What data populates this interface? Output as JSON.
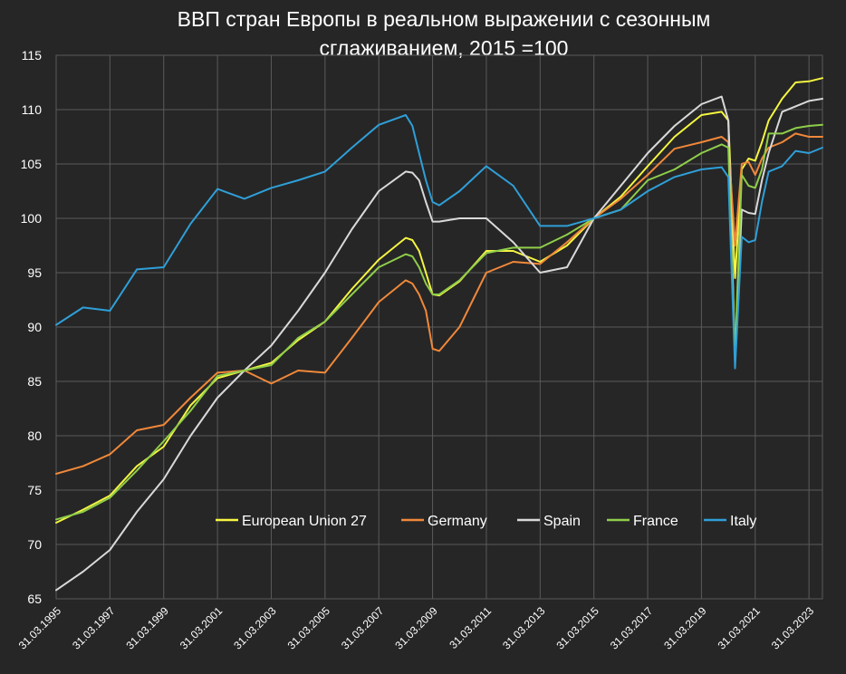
{
  "chart_data": {
    "type": "line",
    "title_line1": "ВВП стран Европы в реальном выражении с сезонным",
    "title_line2": "сглаживанием, 2015 =100",
    "xlabel": "",
    "ylabel": "",
    "ylim": [
      65,
      115
    ],
    "yticks": [
      65,
      70,
      75,
      80,
      85,
      90,
      95,
      100,
      105,
      110,
      115
    ],
    "xlim": [
      1995.0,
      2023.5
    ],
    "xticks": [
      {
        "label": "31.03.1995",
        "x": 1995.0
      },
      {
        "label": "31.03.1997",
        "x": 1997.0
      },
      {
        "label": "31.03.1999",
        "x": 1999.0
      },
      {
        "label": "31.03.2001",
        "x": 2001.0
      },
      {
        "label": "31.03.2003",
        "x": 2003.0
      },
      {
        "label": "31.03.2005",
        "x": 2005.0
      },
      {
        "label": "31.03.2007",
        "x": 2007.0
      },
      {
        "label": "31.03.2009",
        "x": 2009.0
      },
      {
        "label": "31.03.2011",
        "x": 2011.0
      },
      {
        "label": "31.03.2013",
        "x": 2013.0
      },
      {
        "label": "31.03.2015",
        "x": 2015.0
      },
      {
        "label": "31.03.2017",
        "x": 2017.0
      },
      {
        "label": "31.03.2019",
        "x": 2019.0
      },
      {
        "label": "31.03.2021",
        "x": 2021.0
      },
      {
        "label": "31.03.2023",
        "x": 2023.0
      }
    ],
    "grid": true,
    "legend_position": "bottom-center inside plot",
    "series": [
      {
        "name": "European Union 27",
        "color": "#f5f542",
        "x": [
          1995,
          1996,
          1997,
          1998,
          1999,
          2000,
          2001,
          2002,
          2003,
          2004,
          2005,
          2006,
          2007,
          2008,
          2008.25,
          2008.5,
          2008.75,
          2009,
          2009.25,
          2010,
          2011,
          2012,
          2013,
          2014,
          2015,
          2016,
          2017,
          2018,
          2019,
          2019.75,
          2020,
          2020.25,
          2020.5,
          2020.75,
          2021,
          2021.25,
          2021.5,
          2022,
          2022.5,
          2023,
          2023.5
        ],
        "y": [
          72.0,
          73.2,
          74.5,
          77.2,
          79.0,
          82.8,
          85.3,
          86.0,
          86.7,
          88.8,
          90.5,
          93.5,
          96.2,
          98.2,
          98.0,
          97.0,
          95.0,
          93.0,
          92.9,
          94.2,
          97.0,
          97.0,
          96.0,
          97.5,
          100.0,
          102.0,
          104.8,
          107.5,
          109.5,
          109.8,
          109.0,
          94.5,
          104.5,
          105.5,
          105.3,
          107.0,
          109.0,
          111.0,
          112.5,
          112.6,
          112.9
        ]
      },
      {
        "name": "Germany",
        "color": "#f0883a",
        "x": [
          1995,
          1996,
          1997,
          1998,
          1999,
          2000,
          2001,
          2002,
          2003,
          2004,
          2005,
          2006,
          2007,
          2008,
          2008.25,
          2008.5,
          2008.75,
          2009,
          2009.25,
          2010,
          2011,
          2012,
          2013,
          2014,
          2015,
          2016,
          2017,
          2018,
          2019,
          2019.75,
          2020,
          2020.25,
          2020.5,
          2020.75,
          2021,
          2021.25,
          2021.5,
          2022,
          2022.5,
          2023,
          2023.5
        ],
        "y": [
          76.5,
          77.2,
          78.3,
          80.5,
          81.0,
          83.5,
          85.8,
          86.0,
          84.8,
          86.0,
          85.8,
          89.0,
          92.3,
          94.3,
          94.0,
          93.0,
          91.5,
          88.0,
          87.8,
          90.0,
          95.0,
          96.0,
          95.8,
          97.8,
          100.0,
          101.8,
          104.0,
          106.4,
          107.0,
          107.5,
          107.0,
          97.5,
          105.0,
          105.2,
          104.0,
          105.5,
          106.5,
          107.0,
          107.8,
          107.5,
          107.5
        ]
      },
      {
        "name": "Spain",
        "color": "#d9d9d9",
        "x": [
          1995,
          1996,
          1997,
          1998,
          1999,
          2000,
          2001,
          2002,
          2003,
          2004,
          2005,
          2006,
          2007,
          2008,
          2008.25,
          2008.5,
          2008.75,
          2009,
          2009.25,
          2010,
          2011,
          2012,
          2013,
          2014,
          2015,
          2016,
          2017,
          2018,
          2019,
          2019.75,
          2020,
          2020.25,
          2020.5,
          2020.75,
          2021,
          2021.25,
          2021.5,
          2022,
          2022.5,
          2023,
          2023.5
        ],
        "y": [
          65.8,
          67.5,
          69.5,
          73.0,
          76.0,
          80.0,
          83.5,
          86.0,
          88.3,
          91.5,
          95.0,
          99.0,
          102.5,
          104.3,
          104.2,
          103.5,
          101.5,
          99.7,
          99.7,
          100.0,
          100.0,
          97.8,
          95.0,
          95.5,
          100.0,
          103.0,
          106.0,
          108.5,
          110.5,
          111.2,
          109.0,
          87.0,
          100.8,
          100.5,
          100.4,
          103.5,
          106.0,
          109.8,
          110.3,
          110.8,
          111.0
        ]
      },
      {
        "name": "France",
        "color": "#8fce4a",
        "x": [
          1995,
          1996,
          1997,
          1998,
          1999,
          2000,
          2001,
          2002,
          2003,
          2004,
          2005,
          2006,
          2007,
          2008,
          2008.25,
          2008.5,
          2008.75,
          2009,
          2009.25,
          2010,
          2011,
          2012,
          2013,
          2014,
          2015,
          2016,
          2017,
          2018,
          2019,
          2019.75,
          2020,
          2020.25,
          2020.5,
          2020.75,
          2021,
          2021.25,
          2021.5,
          2022,
          2022.5,
          2023,
          2023.5
        ],
        "y": [
          72.3,
          73.0,
          74.3,
          76.8,
          79.5,
          82.3,
          85.5,
          86.0,
          86.5,
          89.0,
          90.5,
          93.0,
          95.5,
          96.7,
          96.5,
          95.5,
          94.0,
          93.0,
          93.0,
          94.3,
          96.8,
          97.3,
          97.3,
          98.5,
          100.0,
          100.8,
          103.5,
          104.5,
          106.0,
          106.8,
          106.5,
          87.5,
          104.0,
          103.0,
          102.8,
          104.5,
          107.8,
          107.8,
          108.3,
          108.5,
          108.6
        ]
      },
      {
        "name": "Italy",
        "color": "#2f9fd8",
        "x": [
          1995,
          1996,
          1997,
          1998,
          1999,
          2000,
          2001,
          2002,
          2003,
          2004,
          2005,
          2006,
          2007,
          2008,
          2008.25,
          2008.5,
          2008.75,
          2009,
          2009.25,
          2010,
          2011,
          2012,
          2013,
          2014,
          2015,
          2016,
          2017,
          2018,
          2019,
          2019.75,
          2020,
          2020.25,
          2020.5,
          2020.75,
          2021,
          2021.25,
          2021.5,
          2022,
          2022.5,
          2023,
          2023.5
        ],
        "y": [
          90.2,
          91.8,
          91.5,
          95.3,
          95.5,
          99.5,
          102.7,
          101.8,
          102.8,
          103.5,
          104.3,
          106.5,
          108.6,
          109.5,
          108.5,
          106.0,
          103.5,
          101.5,
          101.2,
          102.5,
          104.8,
          103.0,
          99.3,
          99.3,
          100.0,
          100.8,
          102.5,
          103.8,
          104.5,
          104.7,
          103.8,
          86.2,
          98.3,
          97.8,
          98.0,
          101.5,
          104.3,
          104.8,
          106.2,
          106.0,
          106.5
        ]
      }
    ]
  }
}
